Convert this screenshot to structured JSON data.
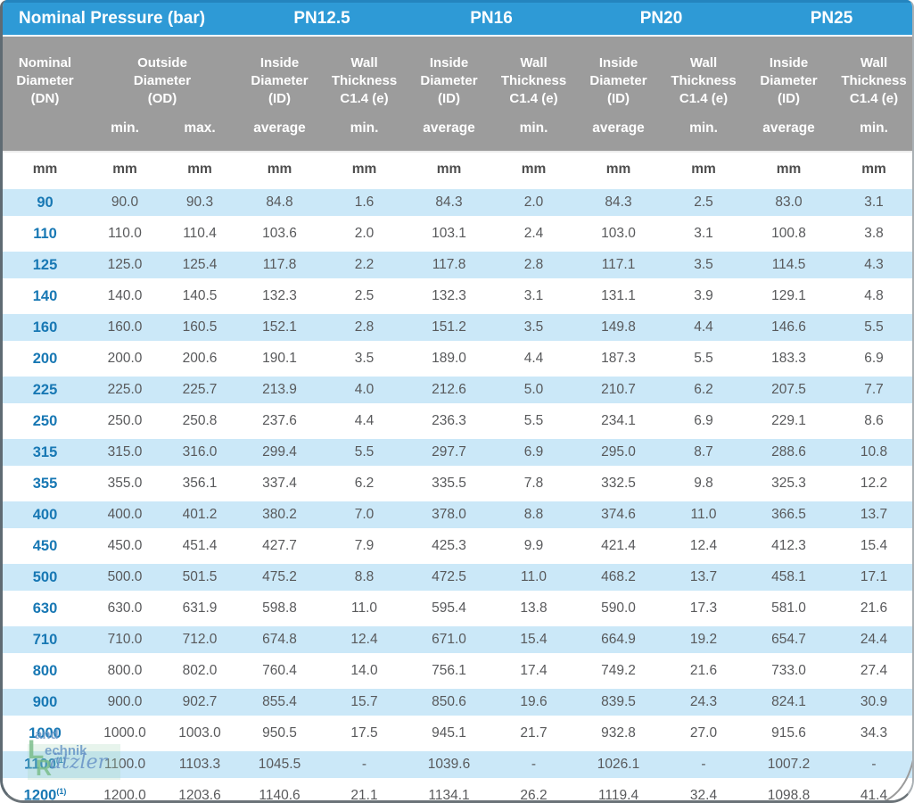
{
  "table": {
    "groups": [
      {
        "label": "Nominal Pressure (bar)",
        "span": 3
      },
      {
        "label": "PN12.5",
        "span": 2
      },
      {
        "label": "PN16",
        "span": 2
      },
      {
        "label": "PN20",
        "span": 2
      },
      {
        "label": "PN25",
        "span": 2
      }
    ],
    "column_headers": [
      {
        "label": "Nominal\nDiameter\n(DN)",
        "span": 1
      },
      {
        "label": "Outside\nDiameter\n(OD)",
        "span": 2
      },
      {
        "label": "Inside\nDiameter\n(ID)",
        "span": 1
      },
      {
        "label": "Wall\nThickness\nC1.4 (e)",
        "span": 1
      },
      {
        "label": "Inside\nDiameter\n(ID)",
        "span": 1
      },
      {
        "label": "Wall\nThickness\nC1.4 (e)",
        "span": 1
      },
      {
        "label": "Inside\nDiameter\n(ID)",
        "span": 1
      },
      {
        "label": "Wall\nThickness\nC1.4 (e)",
        "span": 1
      },
      {
        "label": "Inside\nDiameter\n(ID)",
        "span": 1
      },
      {
        "label": "Wall\nThickness\nC1.4 (e)",
        "span": 1
      }
    ],
    "stat_headers": [
      "",
      "min.",
      "max.",
      "average",
      "min.",
      "average",
      "min.",
      "average",
      "min.",
      "average",
      "min."
    ],
    "units": [
      "mm",
      "mm",
      "mm",
      "mm",
      "mm",
      "mm",
      "mm",
      "mm",
      "mm",
      "mm",
      "mm"
    ],
    "rows": [
      {
        "dn": "90",
        "sup": "",
        "values": [
          "90.0",
          "90.3",
          "84.8",
          "1.6",
          "84.3",
          "2.0",
          "84.3",
          "2.5",
          "83.0",
          "3.1"
        ]
      },
      {
        "dn": "110",
        "sup": "",
        "values": [
          "110.0",
          "110.4",
          "103.6",
          "2.0",
          "103.1",
          "2.4",
          "103.0",
          "3.1",
          "100.8",
          "3.8"
        ]
      },
      {
        "dn": "125",
        "sup": "",
        "values": [
          "125.0",
          "125.4",
          "117.8",
          "2.2",
          "117.8",
          "2.8",
          "117.1",
          "3.5",
          "114.5",
          "4.3"
        ]
      },
      {
        "dn": "140",
        "sup": "",
        "values": [
          "140.0",
          "140.5",
          "132.3",
          "2.5",
          "132.3",
          "3.1",
          "131.1",
          "3.9",
          "129.1",
          "4.8"
        ]
      },
      {
        "dn": "160",
        "sup": "",
        "values": [
          "160.0",
          "160.5",
          "152.1",
          "2.8",
          "151.2",
          "3.5",
          "149.8",
          "4.4",
          "146.6",
          "5.5"
        ]
      },
      {
        "dn": "200",
        "sup": "",
        "values": [
          "200.0",
          "200.6",
          "190.1",
          "3.5",
          "189.0",
          "4.4",
          "187.3",
          "5.5",
          "183.3",
          "6.9"
        ]
      },
      {
        "dn": "225",
        "sup": "",
        "values": [
          "225.0",
          "225.7",
          "213.9",
          "4.0",
          "212.6",
          "5.0",
          "210.7",
          "6.2",
          "207.5",
          "7.7"
        ]
      },
      {
        "dn": "250",
        "sup": "",
        "values": [
          "250.0",
          "250.8",
          "237.6",
          "4.4",
          "236.3",
          "5.5",
          "234.1",
          "6.9",
          "229.1",
          "8.6"
        ]
      },
      {
        "dn": "315",
        "sup": "",
        "values": [
          "315.0",
          "316.0",
          "299.4",
          "5.5",
          "297.7",
          "6.9",
          "295.0",
          "8.7",
          "288.6",
          "10.8"
        ]
      },
      {
        "dn": "355",
        "sup": "",
        "values": [
          "355.0",
          "356.1",
          "337.4",
          "6.2",
          "335.5",
          "7.8",
          "332.5",
          "9.8",
          "325.3",
          "12.2"
        ]
      },
      {
        "dn": "400",
        "sup": "",
        "values": [
          "400.0",
          "401.2",
          "380.2",
          "7.0",
          "378.0",
          "8.8",
          "374.6",
          "11.0",
          "366.5",
          "13.7"
        ]
      },
      {
        "dn": "450",
        "sup": "",
        "values": [
          "450.0",
          "451.4",
          "427.7",
          "7.9",
          "425.3",
          "9.9",
          "421.4",
          "12.4",
          "412.3",
          "15.4"
        ]
      },
      {
        "dn": "500",
        "sup": "",
        "values": [
          "500.0",
          "501.5",
          "475.2",
          "8.8",
          "472.5",
          "11.0",
          "468.2",
          "13.7",
          "458.1",
          "17.1"
        ]
      },
      {
        "dn": "630",
        "sup": "",
        "values": [
          "630.0",
          "631.9",
          "598.8",
          "11.0",
          "595.4",
          "13.8",
          "590.0",
          "17.3",
          "581.0",
          "21.6"
        ]
      },
      {
        "dn": "710",
        "sup": "",
        "values": [
          "710.0",
          "712.0",
          "674.8",
          "12.4",
          "671.0",
          "15.4",
          "664.9",
          "19.2",
          "654.7",
          "24.4"
        ]
      },
      {
        "dn": "800",
        "sup": "",
        "values": [
          "800.0",
          "802.0",
          "760.4",
          "14.0",
          "756.1",
          "17.4",
          "749.2",
          "21.6",
          "733.0",
          "27.4"
        ]
      },
      {
        "dn": "900",
        "sup": "",
        "values": [
          "900.0",
          "902.7",
          "855.4",
          "15.7",
          "850.6",
          "19.6",
          "839.5",
          "24.3",
          "824.1",
          "30.9"
        ]
      },
      {
        "dn": "1000",
        "sup": "",
        "values": [
          "1000.0",
          "1003.0",
          "950.5",
          "17.5",
          "945.1",
          "21.7",
          "932.8",
          "27.0",
          "915.6",
          "34.3"
        ]
      },
      {
        "dn": "1100",
        "sup": "(1)",
        "values": [
          "1100.0",
          "1103.3",
          "1045.5",
          "-",
          "1039.6",
          "-",
          "1026.1",
          "-",
          "1007.2",
          "-"
        ]
      },
      {
        "dn": "1200",
        "sup": "(1)",
        "values": [
          "1200.0",
          "1203.6",
          "1140.6",
          "21.1",
          "1134.1",
          "26.2",
          "1119.4",
          "32.4",
          "1098.8",
          "41.4"
        ]
      }
    ]
  },
  "watermark": {
    "part1": "and",
    "part2": "echnik",
    "part3": "ätzler",
    "initial1": "L",
    "initial2": "R"
  },
  "colors": {
    "band_blue": "#2e9ad6",
    "header_gray": "#9c9c9c",
    "stripe_blue": "#cbe8f8",
    "dn_blue": "#1878b4",
    "value_gray": "#58595b"
  }
}
